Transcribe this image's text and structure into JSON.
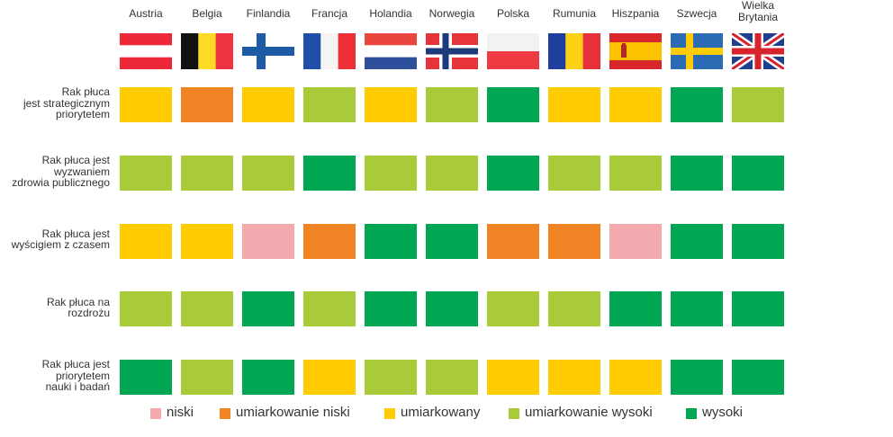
{
  "chart_data": {
    "type": "heatmap",
    "countries": [
      "Austria",
      "Belgia",
      "Finlandia",
      "Francja",
      "Holandia",
      "Norwegia",
      "Polska",
      "Rumunia",
      "Hiszpania",
      "Szwecja",
      "Wielka Brytania"
    ],
    "rows": [
      {
        "label": "Rak płuca jest strategicznym priorytetem",
        "values": [
          "umiarkowany",
          "umiarkowanie niski",
          "umiarkowany",
          "umiarkowanie wysoki",
          "umiarkowany",
          "umiarkowanie wysoki",
          "wysoki",
          "umiarkowany",
          "umiarkowany",
          "wysoki",
          "umiarkowanie wysoki"
        ]
      },
      {
        "label": "Rak płuca jest wyzwaniem zdrowia publicznego",
        "values": [
          "umiarkowanie wysoki",
          "umiarkowanie wysoki",
          "umiarkowanie wysoki",
          "wysoki",
          "umiarkowanie wysoki",
          "umiarkowanie wysoki",
          "wysoki",
          "umiarkowanie wysoki",
          "umiarkowanie wysoki",
          "wysoki",
          "wysoki"
        ]
      },
      {
        "label": "Rak płuca jest wyścigiem z czasem",
        "values": [
          "umiarkowany",
          "umiarkowany",
          "niski",
          "umiarkowanie niski",
          "wysoki",
          "wysoki",
          "umiarkowanie niski",
          "umiarkowanie niski",
          "niski",
          "wysoki",
          "wysoki"
        ]
      },
      {
        "label": "Rak płuca na rozdrożu",
        "values": [
          "umiarkowanie wysoki",
          "umiarkowanie wysoki",
          "wysoki",
          "umiarkowanie wysoki",
          "wysoki",
          "wysoki",
          "umiarkowanie wysoki",
          "umiarkowanie wysoki",
          "wysoki",
          "wysoki",
          "wysoki"
        ]
      },
      {
        "label": "Rak płuca jest priorytetem nauki i badań",
        "values": [
          "wysoki",
          "umiarkowanie wysoki",
          "wysoki",
          "umiarkowany",
          "umiarkowanie wysoki",
          "umiarkowanie wysoki",
          "umiarkowany",
          "umiarkowany",
          "umiarkowany",
          "wysoki",
          "wysoki"
        ]
      }
    ],
    "legend": [
      {
        "label": "niski",
        "color": "#f4a9ae"
      },
      {
        "label": "umiarkowanie niski",
        "color": "#f18424"
      },
      {
        "label": "umiarkowany",
        "color": "#ffcc00"
      },
      {
        "label": "umiarkowanie wysoki",
        "color": "#a9cb3a"
      },
      {
        "label": "wysoki",
        "color": "#00a652"
      }
    ],
    "legend_position": "bottom"
  },
  "flags": [
    "austria-flag",
    "belgium-flag",
    "finland-flag",
    "france-flag",
    "netherlands-flag",
    "norway-flag",
    "poland-flag",
    "romania-flag",
    "spain-flag",
    "sweden-flag",
    "united-kingdom-flag"
  ]
}
